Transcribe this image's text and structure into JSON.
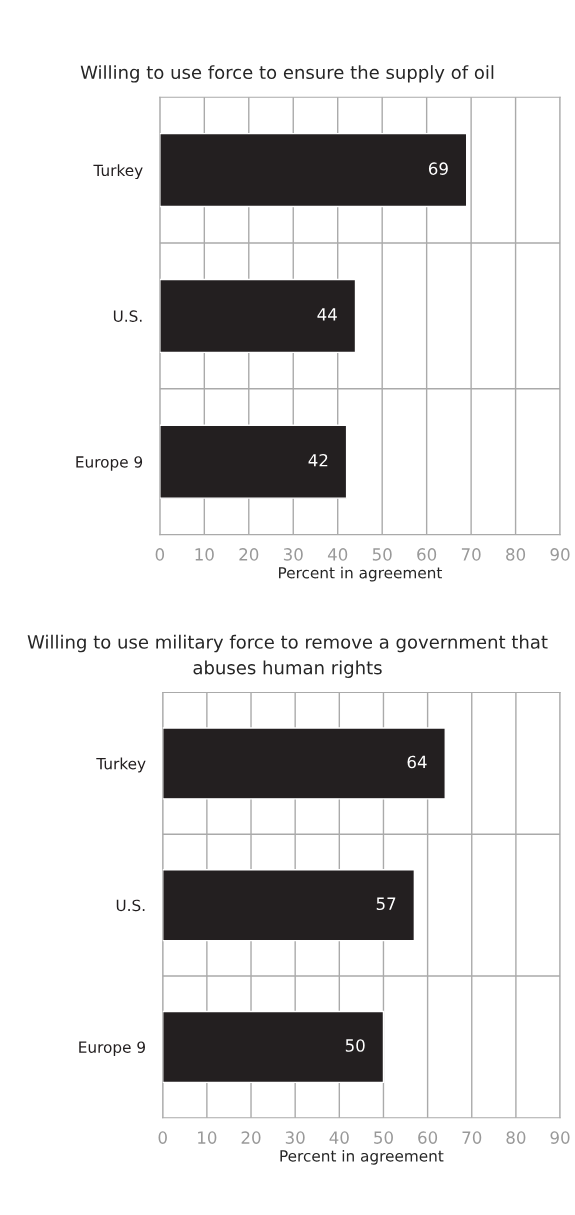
{
  "chart_data": [
    {
      "type": "bar",
      "orientation": "horizontal",
      "title": "Willing to use force to ensure the supply of oil",
      "xlabel": "Percent in agreement",
      "categories": [
        "Turkey",
        "U.S.",
        "Europe 9"
      ],
      "values": [
        69,
        44,
        42
      ],
      "color": "#231f20",
      "data_labels": true,
      "xlim": [
        0,
        90
      ],
      "xticks": [
        0,
        10,
        20,
        30,
        40,
        50,
        60,
        70,
        80,
        90
      ],
      "grid": "x"
    },
    {
      "type": "bar",
      "orientation": "horizontal",
      "title": "Willing to use military force to remove a government that abuses human rights",
      "xlabel": "Percent in agreement",
      "categories": [
        "Turkey",
        "U.S.",
        "Europe 9"
      ],
      "values": [
        64,
        57,
        50
      ],
      "color": "#231f20",
      "data_labels": true,
      "xlim": [
        0,
        90
      ],
      "xticks": [
        0,
        10,
        20,
        30,
        40,
        50,
        60,
        70,
        80,
        90
      ],
      "grid": "x"
    }
  ]
}
